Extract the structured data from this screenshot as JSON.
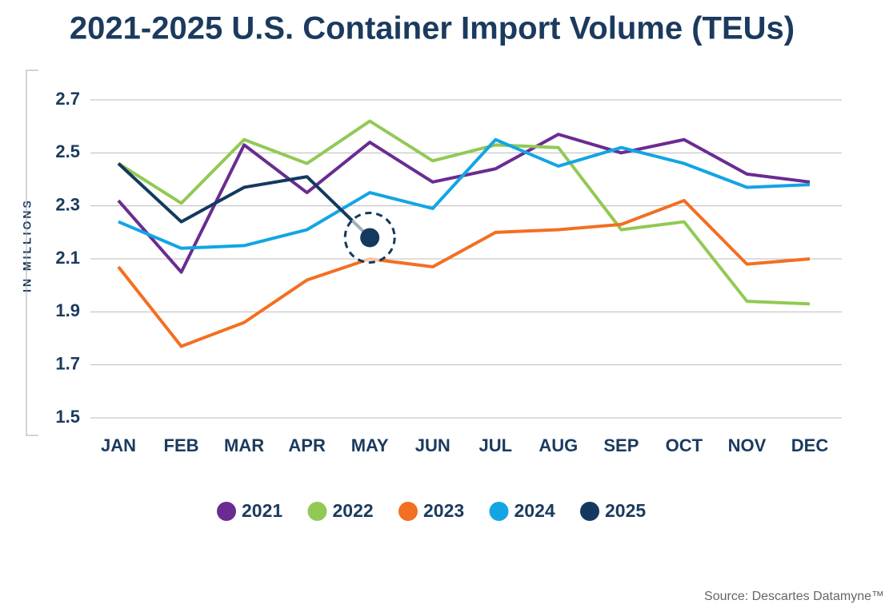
{
  "chart_data": {
    "type": "line",
    "title": "2021-2025 U.S. Container Import Volume (TEUs)",
    "y_label": "IN MILLIONS",
    "source": "Source: Descartes Datamyne™",
    "categories": [
      "JAN",
      "FEB",
      "MAR",
      "APR",
      "MAY",
      "JUN",
      "JUL",
      "AUG",
      "SEP",
      "OCT",
      "NOV",
      "DEC"
    ],
    "series": [
      {
        "name": "2021",
        "color": "#6a2c91",
        "values": [
          2.32,
          2.05,
          2.53,
          2.35,
          2.54,
          2.39,
          2.44,
          2.57,
          2.5,
          2.55,
          2.42,
          2.39
        ]
      },
      {
        "name": "2022",
        "color": "#92c954",
        "values": [
          2.46,
          2.31,
          2.55,
          2.46,
          2.62,
          2.47,
          2.53,
          2.52,
          2.21,
          2.24,
          1.94,
          1.93
        ]
      },
      {
        "name": "2023",
        "color": "#f36f21",
        "values": [
          2.07,
          1.77,
          1.86,
          2.02,
          2.1,
          2.07,
          2.2,
          2.21,
          2.23,
          2.32,
          2.08,
          2.1
        ]
      },
      {
        "name": "2024",
        "color": "#12a5e4",
        "values": [
          2.24,
          2.14,
          2.15,
          2.21,
          2.35,
          2.29,
          2.55,
          2.45,
          2.52,
          2.46,
          2.37,
          2.38
        ]
      },
      {
        "name": "2025",
        "color": "#13395e",
        "values": [
          2.46,
          2.24,
          2.37,
          2.41,
          2.18,
          null,
          null,
          null,
          null,
          null,
          null,
          null
        ]
      }
    ],
    "ylim": [
      1.5,
      2.7
    ],
    "yticks": [
      1.5,
      1.7,
      1.9,
      2.1,
      2.3,
      2.5,
      2.7
    ],
    "grid": true
  }
}
